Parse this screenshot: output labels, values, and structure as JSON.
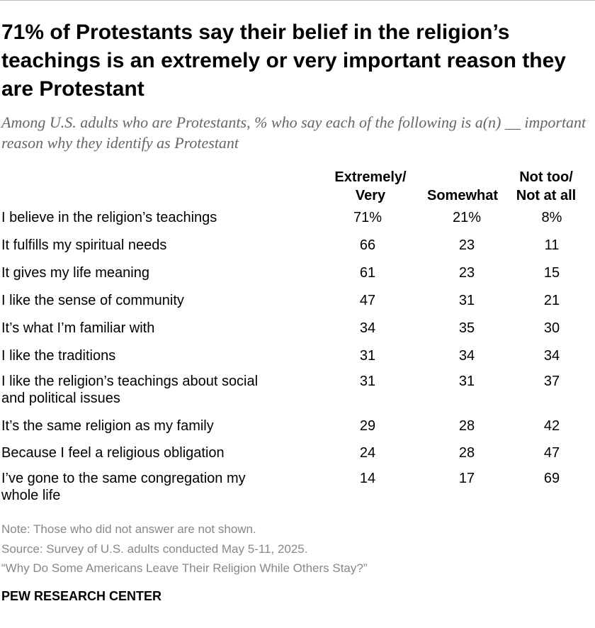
{
  "chart_data": {
    "type": "table",
    "title": "71% of Protestants say their belief in the religion’s teachings is an extremely or very important reason they are Protestant",
    "subtitle": "Among U.S. adults who are Protestants, % who say each of the following is a(n) __ important reason why they identify as Protestant",
    "columns": [
      {
        "line1": "Extremely/",
        "line2": "Very"
      },
      {
        "line1": "",
        "line2": "Somewhat"
      },
      {
        "line1": "Not too/",
        "line2": "Not at all"
      }
    ],
    "rows": [
      {
        "label": "I believe in the religion’s teachings",
        "values": [
          "71%",
          "21%",
          "8%"
        ]
      },
      {
        "label": "It fulfills my spiritual needs",
        "values": [
          "66",
          "23",
          "11"
        ]
      },
      {
        "label": "It gives my life meaning",
        "values": [
          "61",
          "23",
          "15"
        ]
      },
      {
        "label": "I like the sense of community",
        "values": [
          "47",
          "31",
          "21"
        ]
      },
      {
        "label": "It’s what I’m familiar with",
        "values": [
          "34",
          "35",
          "30"
        ]
      },
      {
        "label": "I like the traditions",
        "values": [
          "31",
          "34",
          "34"
        ]
      },
      {
        "label": "I like the religion’s teachings about social and political issues",
        "values": [
          "31",
          "31",
          "37"
        ]
      },
      {
        "label": "It’s the same religion as my family",
        "values": [
          "29",
          "28",
          "42"
        ]
      },
      {
        "label": "Because I feel a religious obligation",
        "values": [
          "24",
          "28",
          "47"
        ]
      },
      {
        "label": "I’ve gone to the same congregation my whole life",
        "values": [
          "14",
          "17",
          "69"
        ]
      }
    ]
  },
  "footer": {
    "note": "Note: Those who did not answer are not shown.",
    "source": "Source: Survey of U.S. adults conducted May 5-11, 2025.",
    "report": "“Why Do Some Americans Leave Their Religion While Others Stay?”",
    "brand": "PEW RESEARCH CENTER"
  }
}
